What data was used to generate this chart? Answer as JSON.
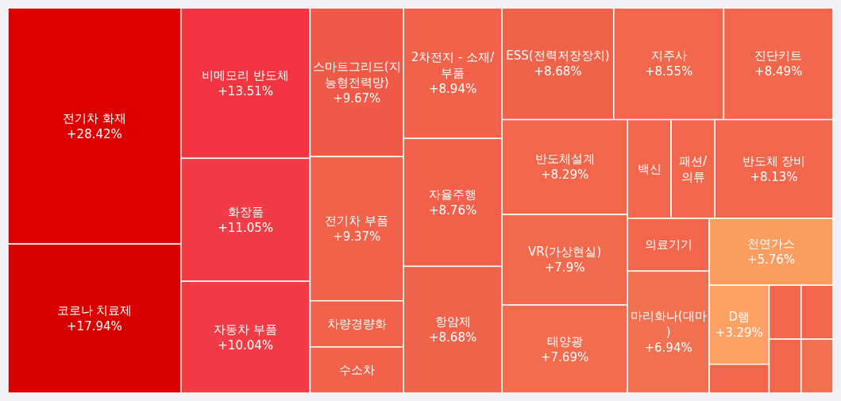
{
  "chart_data": {
    "type": "other",
    "categories": [
      "전기차 화재",
      "코로나 치료제",
      "비메모리 반도체",
      "화장품",
      "자동차 부품",
      "스마트그리드(지능형전력망)",
      "전기차 부품",
      "차량경량화",
      "수소차",
      "2차전지 - 소재/부품",
      "자율주행",
      "항암제",
      "ESS(전력저장장치)",
      "지주사",
      "진단키트",
      "반도체설계",
      "VR(가상현실)",
      "태양광",
      "백신",
      "패션/의류",
      "반도체 장비",
      "의료기기",
      "마리화나(대마)",
      "천연가스",
      "D램",
      null,
      null,
      null,
      null,
      null
    ],
    "values": [
      28.42,
      17.94,
      13.51,
      11.05,
      10.04,
      9.67,
      9.37,
      null,
      null,
      8.94,
      8.76,
      8.68,
      8.68,
      8.55,
      8.49,
      8.29,
      7.9,
      7.69,
      null,
      null,
      8.13,
      null,
      6.94,
      5.76,
      3.29,
      null,
      null,
      null,
      null,
      null
    ],
    "value_labels": [
      "+28.42%",
      "+17.94%",
      "+13.51%",
      "+11.05%",
      "+10.04%",
      "+9.67%",
      "+9.37%",
      null,
      null,
      "+8.94%",
      "+8.76%",
      "+8.68%",
      "+8.68%",
      "+8.55%",
      "+8.49%",
      "+8.29%",
      "+7.9%",
      "+7.69%",
      null,
      null,
      "+8.13%",
      null,
      "+6.94%",
      "+5.76%",
      "+3.29%",
      null,
      null,
      null,
      null,
      null
    ],
    "colors": [
      "#dc0000",
      "#d90000",
      "#f23540",
      "#f23b45",
      "#f23b45",
      "#ee5a46",
      "#f2624a",
      "#f2624a",
      "#f2624a",
      "#f2624a",
      "#f26049",
      "#f0634b",
      "#f0634b",
      "#f2664c",
      "#f2664c",
      "#f2664c",
      "#f26a4e",
      "#f36c4e",
      "#f2664c",
      "#f2664c",
      "#f2664c",
      "#f2664c",
      "#f07050",
      "#fb9d5f",
      "#fca064",
      "#f2664c",
      "#f2664c",
      "#f2664c",
      "#f2664c",
      "#f07050"
    ]
  }
}
